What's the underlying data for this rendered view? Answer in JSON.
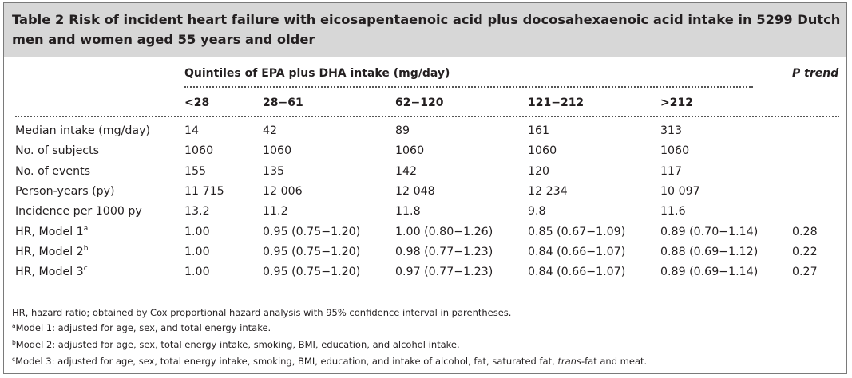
{
  "table": {
    "number": "Table 2",
    "title": "Risk of incident heart failure with eicosapentaenoic acid plus docosahexaenoic acid intake in 5299 Dutch men and women aged 55 years and older",
    "group_header": "Quintiles of EPA plus DHA intake (mg/day)",
    "ptrend_header": "P trend",
    "quintile_headers": [
      "<28",
      "28−61",
      "62−120",
      "121−212",
      ">212"
    ],
    "rows": [
      {
        "label": "Median intake (mg/day)",
        "sup": "",
        "values": [
          "14",
          "42",
          "89",
          "161",
          "313"
        ],
        "p": ""
      },
      {
        "label": "No. of subjects",
        "sup": "",
        "values": [
          "1060",
          "1060",
          "1060",
          "1060",
          "1060"
        ],
        "p": ""
      },
      {
        "label": "No. of events",
        "sup": "",
        "values": [
          "155",
          "135",
          "142",
          "120",
          "117"
        ],
        "p": ""
      },
      {
        "label": "Person-years (py)",
        "sup": "",
        "values": [
          "11 715",
          "12 006",
          "12 048",
          "12 234",
          "10 097"
        ],
        "p": ""
      },
      {
        "label": "Incidence per 1000 py",
        "sup": "",
        "values": [
          "13.2",
          "11.2",
          "11.8",
          "9.8",
          "11.6"
        ],
        "p": ""
      },
      {
        "label": "HR, Model 1",
        "sup": "a",
        "values": [
          "1.00",
          "0.95 (0.75−1.20)",
          "1.00 (0.80−1.26)",
          "0.85 (0.67−1.09)",
          "0.89 (0.70−1.14)"
        ],
        "p": "0.28"
      },
      {
        "label": "HR, Model 2",
        "sup": "b",
        "values": [
          "1.00",
          "0.95 (0.75−1.20)",
          "0.98 (0.77−1.23)",
          "0.84 (0.66−1.07)",
          "0.88 (0.69−1.12)"
        ],
        "p": "0.22"
      },
      {
        "label": "HR, Model 3",
        "sup": "c",
        "values": [
          "1.00",
          "0.95 (0.75−1.20)",
          "0.97 (0.77−1.23)",
          "0.84 (0.66−1.07)",
          "0.89 (0.69−1.14)"
        ],
        "p": "0.27"
      }
    ]
  },
  "footnotes": {
    "hr": "HR, hazard ratio; obtained by Cox proportional hazard analysis with 95% confidence interval in parentheses.",
    "a_mark": "a",
    "a_text": "Model 1: adjusted for age, sex, and total energy intake.",
    "b_mark": "b",
    "b_text": "Model 2: adjusted for age, sex, total energy intake, smoking, BMI, education, and alcohol intake.",
    "c_mark": "c",
    "c_text_before": "Model 3: adjusted for age, sex, total energy intake, smoking, BMI, education, and intake of alcohol, fat, saturated fat, ",
    "c_text_italic": "trans",
    "c_text_after": "-fat and meat."
  }
}
